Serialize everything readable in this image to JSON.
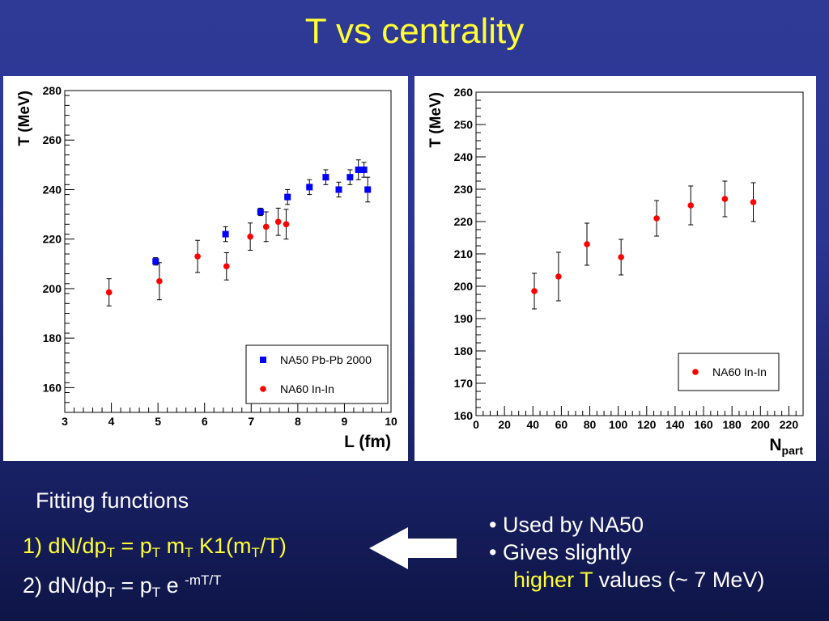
{
  "title": "T vs centrality",
  "colors": {
    "title": "#ffff33",
    "na50": "#0000ff",
    "na60": "#ff0000",
    "highlight": "#ffff33"
  },
  "chart_data": [
    {
      "type": "scatter",
      "xlabel": "L (fm)",
      "ylabel": "T (MeV)",
      "xlim": [
        3,
        10
      ],
      "ylim": [
        150,
        280
      ],
      "xticks": [
        "3",
        "4",
        "5",
        "6",
        "7",
        "8",
        "9",
        "10"
      ],
      "yticks": [
        "160",
        "180",
        "200",
        "220",
        "240",
        "260",
        "280"
      ],
      "legend_position": "bottom-right",
      "series": [
        {
          "name": "NA50 Pb-Pb 2000",
          "marker": "square",
          "color": "#0000ff",
          "x": [
            4.95,
            6.45,
            7.2,
            7.78,
            8.25,
            8.6,
            8.88,
            9.12,
            9.3,
            9.42,
            9.5
          ],
          "y": [
            211,
            222,
            231,
            237,
            241,
            245,
            240,
            245,
            248,
            248,
            240
          ],
          "err": [
            1.5,
            3,
            1.5,
            3,
            3,
            3,
            3,
            3,
            4,
            3,
            5
          ]
        },
        {
          "name": "NA60 In-In",
          "marker": "circle",
          "color": "#ff0000",
          "x": [
            3.95,
            5.03,
            5.85,
            6.47,
            6.98,
            7.32,
            7.58,
            7.75
          ],
          "y": [
            198.5,
            203,
            213,
            209,
            221,
            225,
            227,
            226
          ],
          "err": [
            5.5,
            7.5,
            6.5,
            5.5,
            5.5,
            6,
            5.5,
            6
          ]
        }
      ]
    },
    {
      "type": "scatter",
      "xlabel": "N",
      "xlabel_sub": "part",
      "ylabel": "T (MeV)",
      "xlim": [
        0,
        230
      ],
      "ylim": [
        160,
        260
      ],
      "xticks": [
        "0",
        "20",
        "40",
        "60",
        "80",
        "100",
        "120",
        "140",
        "160",
        "180",
        "200",
        "220"
      ],
      "yticks": [
        "160",
        "170",
        "180",
        "190",
        "200",
        "210",
        "220",
        "230",
        "240",
        "250",
        "260"
      ],
      "legend_position": "bottom-right",
      "series": [
        {
          "name": "NA60 In-In",
          "marker": "circle",
          "color": "#ff0000",
          "x": [
            41,
            58,
            78,
            102,
            127,
            151,
            175,
            195
          ],
          "y": [
            198.5,
            203,
            213,
            209,
            221,
            225,
            227,
            226
          ],
          "err": [
            5.5,
            7.5,
            6.5,
            5.5,
            5.5,
            6,
            5.5,
            6
          ]
        }
      ]
    }
  ],
  "fitting": {
    "heading": "Fitting functions",
    "f1": {
      "prefix": "1) dN/dp",
      "s1": "T",
      "eq": " = p",
      "s2": "T",
      "m": " m",
      "s3": "T",
      "k": " K1(m",
      "s4": "T",
      "end": "/T)"
    },
    "f2": {
      "prefix": "2) dN/dp",
      "s1": "T",
      "eq": " = p",
      "s2": "T",
      "e": " e ",
      "sup": "-mT/T"
    }
  },
  "bullets": {
    "b1": "• Used by NA50",
    "b2": "• Gives slightly",
    "b3_hl": "higher T",
    "b3_rest": " values (~ 7 MeV)"
  }
}
